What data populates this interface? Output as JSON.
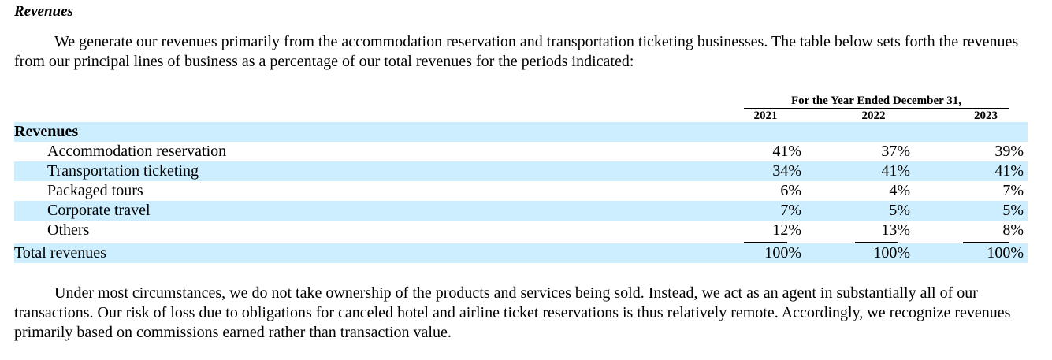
{
  "section_heading": "Revenues",
  "intro_paragraph": "We generate our revenues primarily from the accommodation reservation and transportation ticketing businesses. The table below sets forth the revenues from our principal lines of business as a percentage of our total revenues for the periods indicated:",
  "table": {
    "period_header": "For the Year Ended December 31,",
    "years": [
      "2021",
      "2022",
      "2023"
    ],
    "section_label": "Revenues",
    "rows": [
      {
        "label": "Accommodation reservation",
        "values": [
          "41%",
          "37%",
          "39%"
        ]
      },
      {
        "label": "Transportation ticketing",
        "values": [
          "34%",
          "41%",
          "41%"
        ]
      },
      {
        "label": "Packaged tours",
        "values": [
          "6%",
          "4%",
          "7%"
        ]
      },
      {
        "label": "Corporate travel",
        "values": [
          "7%",
          "5%",
          "5%"
        ]
      },
      {
        "label": "Others",
        "values": [
          "12%",
          "13%",
          "8%"
        ]
      }
    ],
    "total": {
      "label": "Total revenues",
      "values": [
        "100%",
        "100%",
        "100%"
      ]
    }
  },
  "closing_paragraph": "Under most circumstances, we do not take ownership of the products and services being sold. Instead, we act as an agent in substantially all of our transactions. Our risk of loss due to obligations for canceled hotel and airline ticket reservations is thus relatively remote. Accordingly, we recognize revenues primarily based on commissions earned rather than transaction value.",
  "colors": {
    "row_shade": "#cceeff"
  }
}
